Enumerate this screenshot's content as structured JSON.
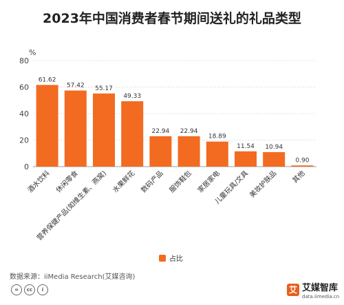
{
  "title": "2023年中国消费者春节期间送礼的礼品类型",
  "source": "数据来源：iiMedia Research(艾媒咨询)",
  "brand": {
    "logo": "艾",
    "name": "艾媒智库",
    "url": "data.iimedia.cn"
  },
  "license_icons": [
    "cc-equal-icon",
    "cc-icon",
    "cc-by-icon"
  ],
  "colors": {
    "bar": "#f26b21",
    "grid": "#e0e0e0",
    "axis": "#999999"
  },
  "chart_data": {
    "type": "bar",
    "ylabel": "%",
    "ylim": [
      0,
      80
    ],
    "yticks": [
      0,
      20,
      40,
      60,
      80
    ],
    "categories": [
      "酒水饮料",
      "休闲零食",
      "营养保健产品(如维生素、燕窝)",
      "水果鲜花",
      "数码产品",
      "服饰鞋包",
      "家居家电",
      "儿童玩具/文具",
      "美妆护肤品",
      "其他"
    ],
    "series": [
      {
        "name": "占比",
        "values": [
          61.62,
          57.42,
          55.17,
          49.33,
          22.94,
          22.94,
          18.89,
          11.54,
          10.94,
          0.9
        ]
      }
    ],
    "value_labels": [
      "61.62",
      "57.42",
      "55.17",
      "49.33",
      "22.94",
      "22.94",
      "18.89",
      "11.54",
      "10.94",
      "0.90"
    ],
    "legend": "bottom-center",
    "grid": true
  }
}
